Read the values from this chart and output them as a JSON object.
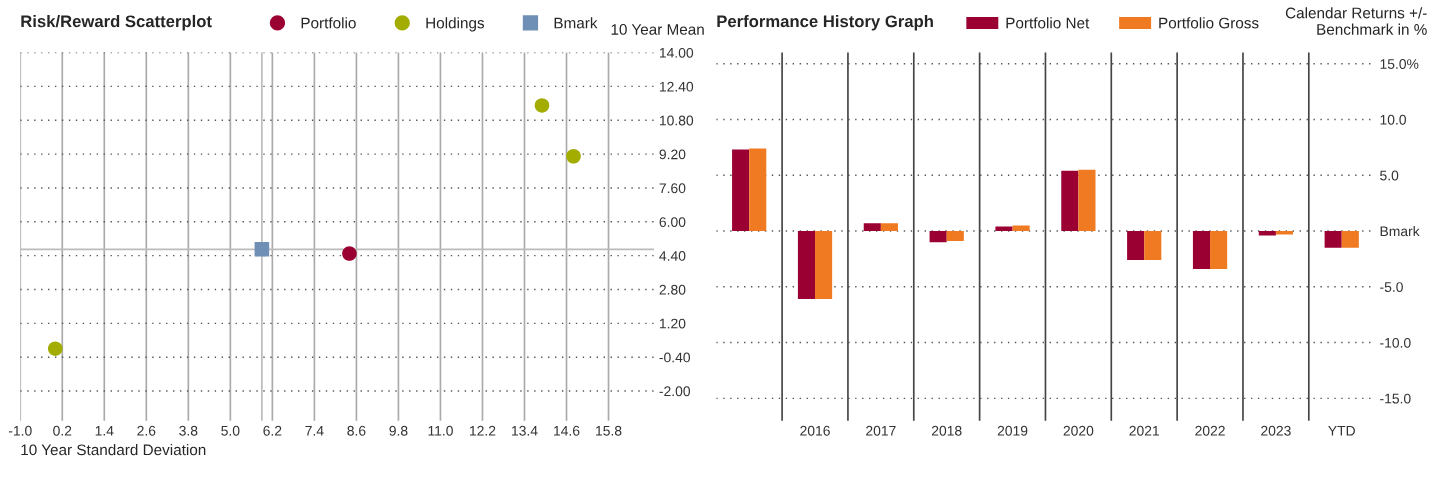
{
  "chart_data": [
    {
      "type": "scatter",
      "title": "Risk/Reward Scatterplot",
      "xlabel": "10 Year Standard Deviation",
      "ylabel": "10 Year Mean",
      "series": [
        {
          "name": "Portfolio",
          "color": "#9b0032",
          "marker": "circle",
          "x": [
            8.4
          ],
          "values": [
            4.5
          ]
        },
        {
          "name": "Holdings",
          "color": "#a2ad00",
          "marker": "circle",
          "x": [
            13.9,
            14.8,
            0.0
          ],
          "values": [
            11.5,
            9.1,
            0.0
          ]
        },
        {
          "name": "Bmark",
          "color": "#6f8fb5",
          "marker": "square",
          "x": [
            5.9
          ],
          "values": [
            4.7
          ]
        }
      ],
      "xlim": [
        -1.0,
        17.1
      ],
      "xticks": [
        {
          "value": -1.0,
          "label": "-1.0"
        },
        0.2,
        1.4,
        2.6,
        3.8,
        {
          "value": 5.0,
          "label": "5.0"
        },
        6.2,
        7.4,
        8.6,
        9.8,
        {
          "value": 11.0,
          "label": "11.0"
        },
        12.2,
        13.4,
        14.6,
        15.8
      ],
      "ylim": [
        -3.4,
        14.0
      ],
      "yticks": [
        {
          "value": 14,
          "label": "14.00"
        },
        {
          "value": 12.4,
          "label": "12.40"
        },
        {
          "value": 10.8,
          "label": "10.80"
        },
        {
          "value": 9.2,
          "label": "9.20"
        },
        {
          "value": 7.6,
          "label": "7.60"
        },
        {
          "value": 6,
          "label": "6.00"
        },
        {
          "value": 4.4,
          "label": "4.40"
        },
        {
          "value": 2.8,
          "label": "2.80"
        },
        {
          "value": 1.2,
          "label": "1.20"
        },
        {
          "value": -0.4,
          "label": "-0.40"
        },
        {
          "value": -2,
          "label": "-2.00"
        }
      ],
      "ref_lines": [
        {
          "axis": "y",
          "value": 4.7,
          "color": "#bbbbbb"
        },
        {
          "axis": "x",
          "value": 5.9,
          "color": "#bbbbbb"
        }
      ],
      "grid": true,
      "legend": "top"
    },
    {
      "type": "bar",
      "title": "Performance History Graph",
      "ylabel": "Calendar Returns +/-\nBenchmark in %",
      "categories": [
        null,
        "2016",
        "2017",
        "2018",
        "2019",
        "2020",
        "2021",
        "2022",
        "2023",
        "YTD"
      ],
      "series": [
        {
          "name": "Portfolio Net",
          "color": "#9b0032",
          "values": [
            7.3,
            -6.1,
            0.7,
            -1.0,
            0.4,
            5.4,
            -2.6,
            -3.4,
            -0.4,
            -1.5
          ]
        },
        {
          "name": "Portfolio Gross",
          "color": "#f07a22",
          "values": [
            7.4,
            -6.1,
            0.7,
            -0.9,
            0.5,
            5.5,
            -2.6,
            -3.4,
            -0.3,
            -1.5
          ]
        }
      ],
      "ylim": [
        -17,
        16
      ],
      "yticks": [
        {
          "value": 15,
          "label": "15.0%"
        },
        {
          "value": 10,
          "label": "10.0"
        },
        {
          "value": 5,
          "label": "5.0"
        },
        {
          "value": 0,
          "label": "Bmark"
        },
        {
          "value": -5,
          "label": "-5.0"
        },
        {
          "value": -10,
          "label": "-10.0"
        },
        {
          "value": -15,
          "label": "-15.0"
        }
      ],
      "grid": true,
      "legend": "top"
    }
  ]
}
